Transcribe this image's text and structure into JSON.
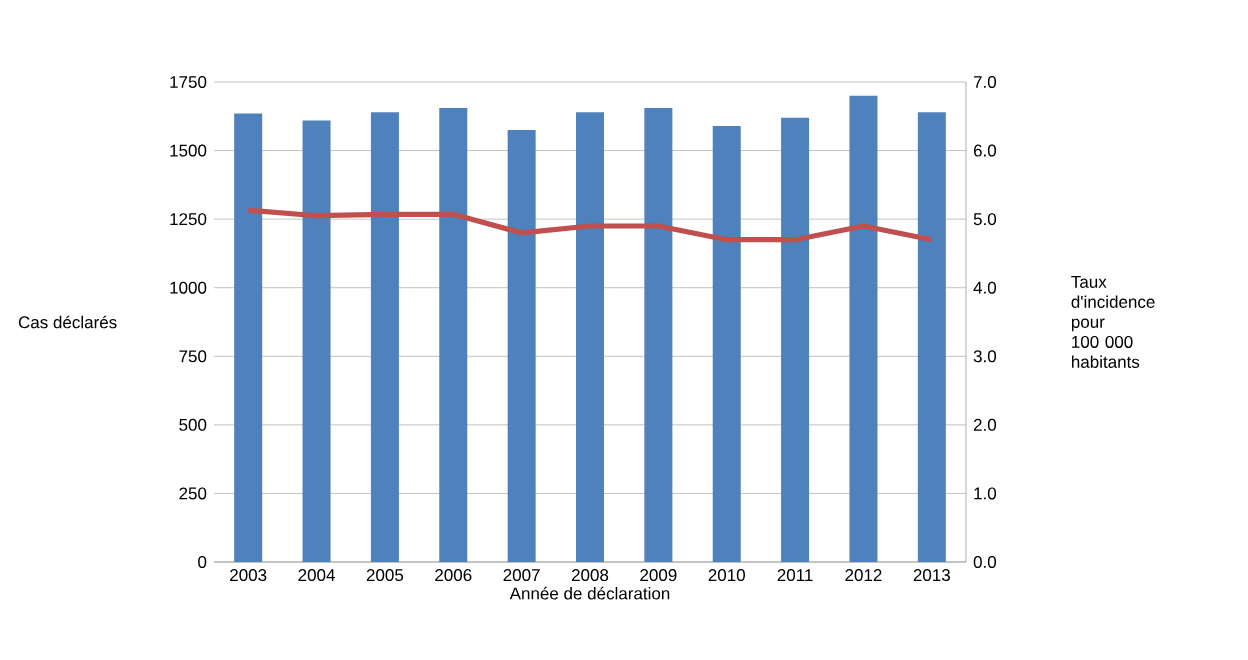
{
  "chart_data": {
    "type": "bar",
    "xlabel": "Année de déclaration",
    "ylabel": "Cas déclarés",
    "y2label": "Taux d'incidence pour 100 000 habitants",
    "categories": [
      "2003",
      "2004",
      "2005",
      "2006",
      "2007",
      "2008",
      "2009",
      "2010",
      "2011",
      "2012",
      "2013"
    ],
    "series": [
      {
        "color": "#4f81bd",
        "values": [
          1635,
          1610,
          1640,
          1655,
          1575,
          1640,
          1655,
          1590,
          1620,
          1700,
          1640
        ]
      },
      {
        "type": "line",
        "axis": "y2",
        "color": "#c0504d",
        "values": [
          5.13,
          5.05,
          5.07,
          5.07,
          4.8,
          4.9,
          4.9,
          4.7,
          4.7,
          4.9,
          4.7
        ]
      }
    ],
    "ylim": [
      0,
      1750
    ],
    "yticks": [
      0,
      250,
      500,
      750,
      1000,
      1250,
      1500,
      1750
    ],
    "y2lim": [
      0,
      7
    ],
    "y2ticks": [
      {
        "value": 0,
        "label": "0.0"
      },
      {
        "value": 1,
        "label": "1.0"
      },
      {
        "value": 2,
        "label": "2.0"
      },
      {
        "value": 3,
        "label": "3.0"
      },
      {
        "value": 4,
        "label": "4.0"
      },
      {
        "value": 5,
        "label": "5.0"
      },
      {
        "value": 6,
        "label": "6.0"
      },
      {
        "value": 7,
        "label": "7.0"
      }
    ],
    "grid": "y",
    "marker": "none"
  }
}
